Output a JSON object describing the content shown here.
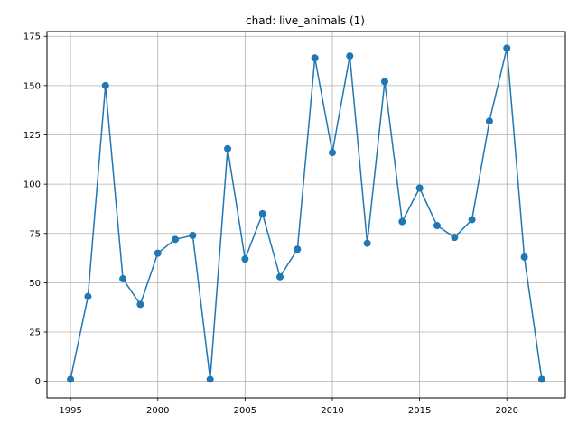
{
  "chart_data": {
    "type": "line",
    "title": "chad: live_animals (1)",
    "xlabel": "",
    "ylabel": "",
    "x": [
      1995,
      1996,
      1997,
      1998,
      1999,
      2000,
      2001,
      2002,
      2003,
      2004,
      2005,
      2006,
      2007,
      2008,
      2009,
      2010,
      2011,
      2012,
      2013,
      2014,
      2015,
      2016,
      2017,
      2018,
      2019,
      2020,
      2021,
      2022
    ],
    "series": [
      {
        "values": [
          1,
          43,
          150,
          52,
          39,
          65,
          72,
          74,
          1,
          118,
          62,
          85,
          53,
          67,
          164,
          116,
          165,
          70,
          152,
          81,
          98,
          79,
          73,
          82,
          132,
          169,
          63,
          1
        ],
        "color": "#1f77b4",
        "marker": "circle"
      }
    ],
    "xlim": [
      1993.65,
      2023.35
    ],
    "ylim": [
      -8.4,
      177.4
    ],
    "xticks": [
      1995,
      2000,
      2005,
      2010,
      2015,
      2020
    ],
    "yticks": [
      0,
      25,
      50,
      75,
      100,
      125,
      150,
      175
    ],
    "grid": true,
    "legend": "none",
    "colors": {
      "line": "#1f77b4",
      "grid": "#b0b0b0",
      "axes": "#000000"
    }
  }
}
